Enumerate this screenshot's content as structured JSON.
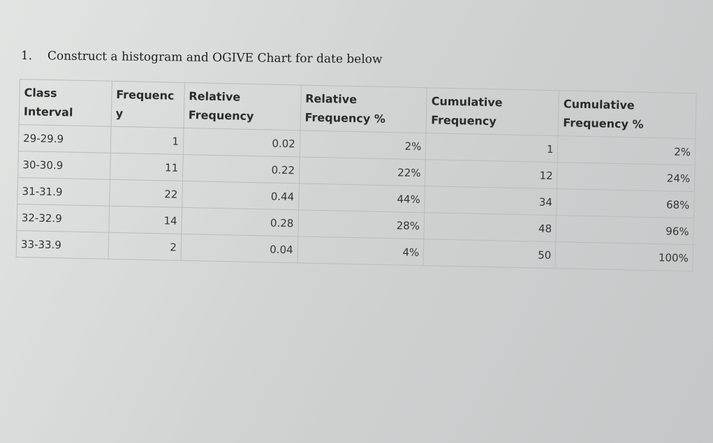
{
  "question": {
    "number": "1.",
    "text": "Construct a histogram and OGIVE Chart for date below"
  },
  "table": {
    "headers": [
      [
        "Class",
        "Interval"
      ],
      [
        "Frequenc",
        "y"
      ],
      [
        "Relative",
        "Frequency"
      ],
      [
        "Relative",
        "Frequency %"
      ],
      [
        "Cumulative",
        "Frequency"
      ],
      [
        "Cumulative",
        "Frequency %"
      ]
    ],
    "rows": [
      [
        "29-29.9",
        "1",
        "0.02",
        "2%",
        "1",
        "2%"
      ],
      [
        "30-30.9",
        "11",
        "0.22",
        "22%",
        "12",
        "24%"
      ],
      [
        "31-31.9",
        "22",
        "0.44",
        "44%",
        "34",
        "68%"
      ],
      [
        "32-32.9",
        "14",
        "0.28",
        "28%",
        "48",
        "96%"
      ],
      [
        "33-33.9",
        "2",
        "0.04",
        "4%",
        "50",
        "100%"
      ]
    ]
  }
}
